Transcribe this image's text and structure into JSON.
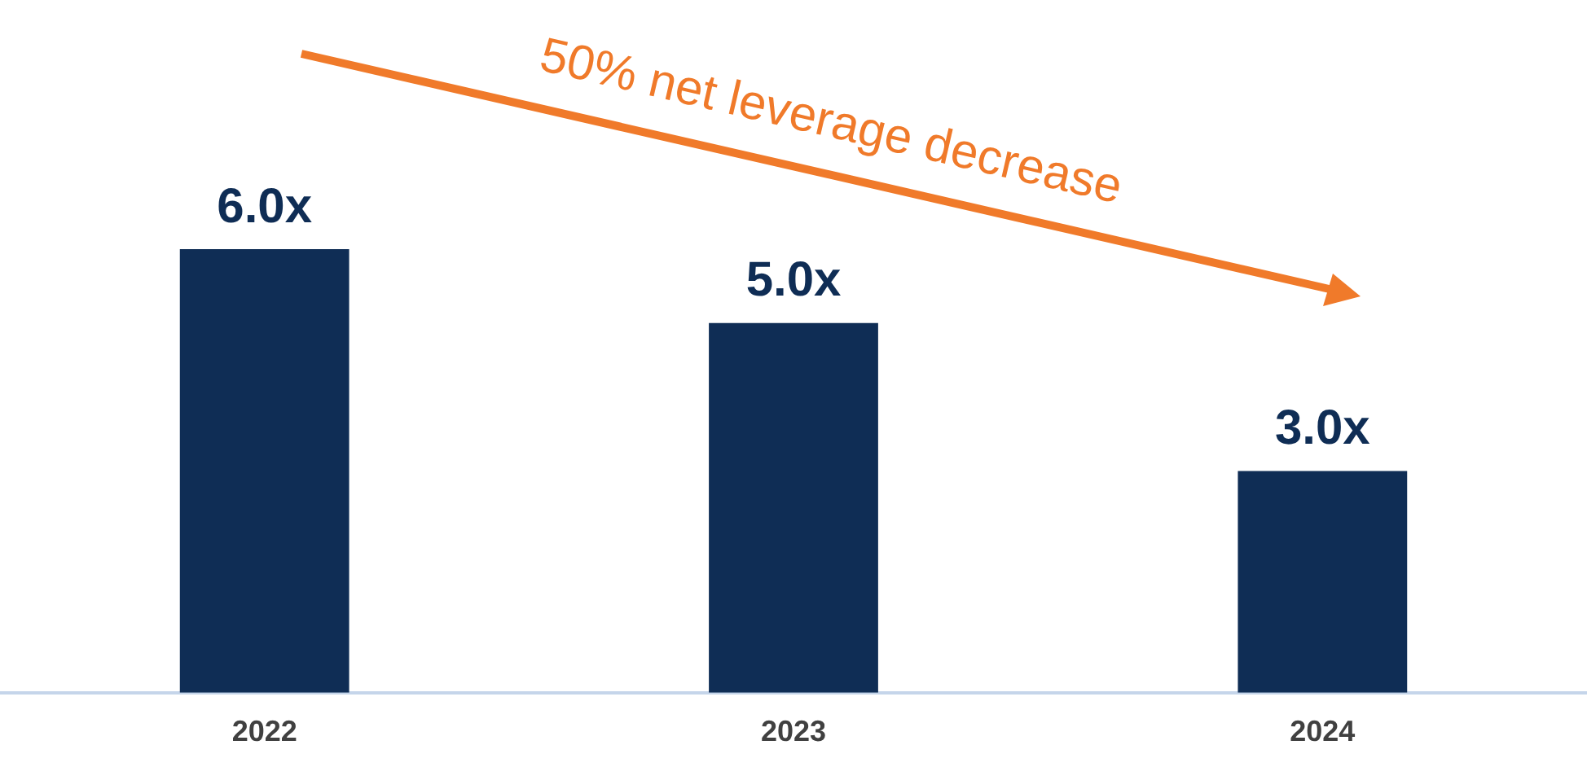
{
  "chart_data": {
    "type": "bar",
    "categories": [
      "2022",
      "2023",
      "2024"
    ],
    "values": [
      6.0,
      5.0,
      3.0
    ],
    "color": "#0f2d55",
    "value_labels": [
      "6.0x",
      "5.0x",
      "3.0x"
    ],
    "tick_labels": "x",
    "grid": false,
    "legend": false,
    "annotations": [
      "50% net leverage decrease"
    ]
  }
}
